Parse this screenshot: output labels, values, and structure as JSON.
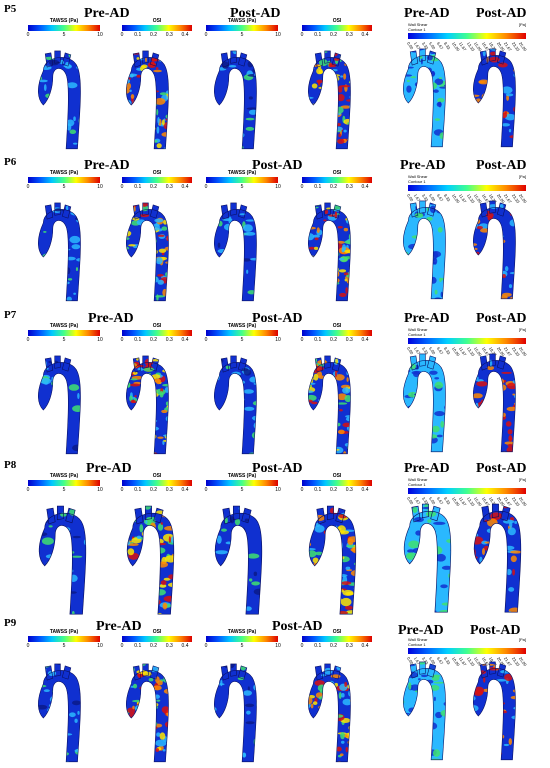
{
  "patients": [
    {
      "id": "P5",
      "pre": "Pre-AD",
      "post": "Post-AD",
      "wss_pre": "Pre-AD",
      "wss_post": "Post-AD"
    },
    {
      "id": "P6",
      "pre": "Pre-AD",
      "post": "Post-AD",
      "wss_pre": "Pre-AD",
      "wss_post": "Post-AD"
    },
    {
      "id": "P7",
      "pre": "Pre-AD",
      "post": "Post-AD",
      "wss_pre": "Pre-AD",
      "wss_post": "Post-AD"
    },
    {
      "id": "P8",
      "pre": "Pre-AD",
      "post": "Post-AD",
      "wss_pre": "Pre-AD",
      "wss_post": "Post-AD"
    },
    {
      "id": "P9",
      "pre": "Pre-AD",
      "post": "Post-AD",
      "wss_pre": "Pre-AD",
      "wss_post": "Post-AD"
    }
  ],
  "tawss_bar": {
    "title": "TAWSS (Pa)",
    "ticks": [
      "0",
      "5",
      "10"
    ]
  },
  "osi_bar": {
    "title": "OSI",
    "ticks": [
      "0",
      "0.1",
      "0.2",
      "0.3",
      "0.4"
    ]
  },
  "wss_bar": {
    "title_line1": "Wall Shear",
    "title_line2": "Contour 1",
    "unit": "[Pa]",
    "ticks": [
      "0.00",
      "1.67",
      "3.33",
      "5.00",
      "6.67",
      "8.33",
      "10.00",
      "11.67",
      "13.33",
      "15.00",
      "16.67",
      "18.33",
      "20.00",
      "21.67",
      "23.33",
      "25.00"
    ]
  },
  "colors": {
    "blue": "#1030d0",
    "cyan": "#2ab8ff",
    "green": "#40e070",
    "yellow": "#ffe600",
    "orange": "#ff8a00",
    "red": "#d81010",
    "dark": "#0a1a8a"
  }
}
